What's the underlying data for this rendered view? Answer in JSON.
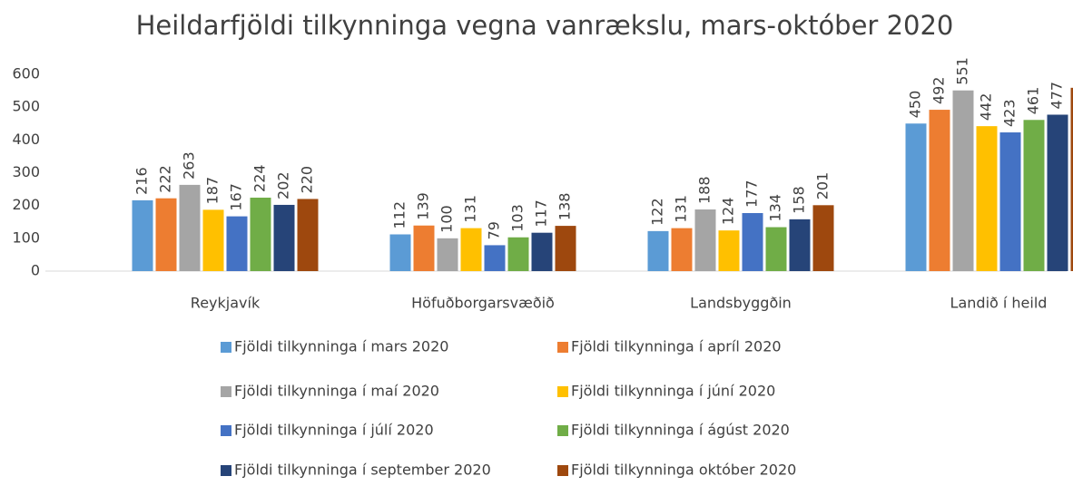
{
  "chart_data": {
    "type": "bar",
    "title": "Heildarfjöldi tilkynninga vegna vanrækslu, mars-október 2020",
    "categories": [
      "Reykjavík",
      "Höfuðborgarsvæðið",
      "Landsbyggðin",
      "Landið í heild"
    ],
    "series": [
      {
        "name": "Fjöldi tilkynninga í mars 2020",
        "color": "#5b9bd5",
        "values": [
          216,
          112,
          122,
          450
        ]
      },
      {
        "name": "Fjöldi tilkynninga í apríl 2020",
        "color": "#ed7d31",
        "values": [
          222,
          139,
          131,
          492
        ]
      },
      {
        "name": "Fjöldi tilkynninga í maí 2020",
        "color": "#a5a5a5",
        "values": [
          263,
          100,
          188,
          551
        ]
      },
      {
        "name": "Fjöldi tilkynninga í júní 2020",
        "color": "#ffc000",
        "values": [
          187,
          131,
          124,
          442
        ]
      },
      {
        "name": "Fjöldi tilkynninga í júlí 2020",
        "color": "#4472c4",
        "values": [
          167,
          79,
          177,
          423
        ]
      },
      {
        "name": "Fjöldi tilkynninga í ágúst 2020",
        "color": "#70ad47",
        "values": [
          224,
          103,
          134,
          461
        ]
      },
      {
        "name": "Fjöldi tilkynninga í september 2020",
        "color": "#264478",
        "values": [
          202,
          117,
          158,
          477
        ]
      },
      {
        "name": "Fjöldi tilkynninga október 2020",
        "color": "#9e480e",
        "values": [
          220,
          138,
          201,
          559
        ]
      }
    ],
    "ylim": [
      0,
      600
    ],
    "yticks": [
      0,
      100,
      200,
      300,
      400,
      500,
      600
    ],
    "grid": false,
    "legend": "bottom"
  }
}
